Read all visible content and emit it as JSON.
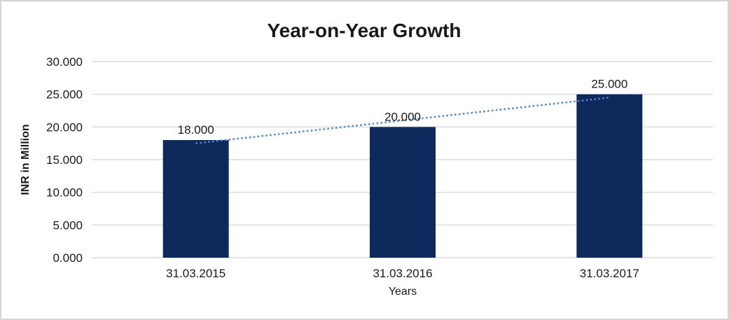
{
  "chart_data": {
    "type": "bar",
    "title": "Year-on-Year Growth",
    "xlabel": "Years",
    "ylabel": "INR in Million",
    "categories": [
      "31.03.2015",
      "31.03.2016",
      "31.03.2017"
    ],
    "values": [
      18000,
      20000,
      25000
    ],
    "value_labels": [
      "18.000",
      "20.000",
      "25.000"
    ],
    "ylim": [
      0,
      30000
    ],
    "y_tick_step": 5000,
    "y_tick_labels": [
      "0.000",
      "5.000",
      "10.000",
      "15.000",
      "20.000",
      "25.000",
      "30.000"
    ],
    "grid": "horizontal",
    "legend": "none",
    "bar_color": "#0e2a5c",
    "gridline_color": "#d9d9d9",
    "text_color": "#1a1a1a",
    "trendline": {
      "type": "linear",
      "style": "dotted",
      "color": "#4f87c7",
      "start_value": 17500,
      "end_value": 24500
    }
  },
  "window": {
    "background": "#ffffff",
    "border_color": "#d5d5d5"
  }
}
